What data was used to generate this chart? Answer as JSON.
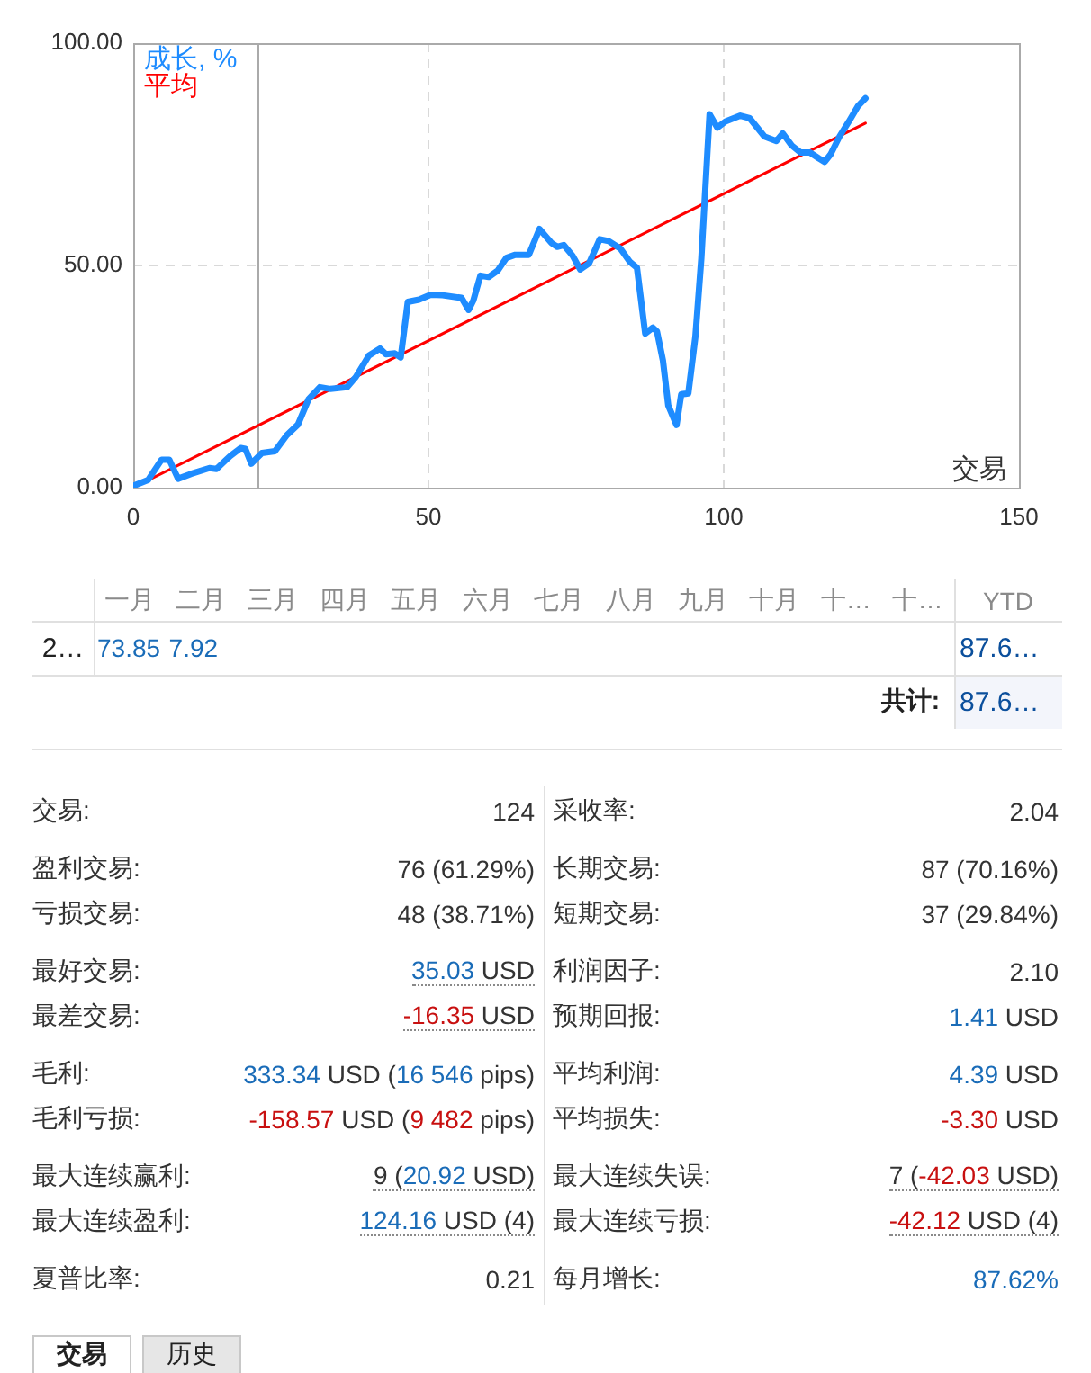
{
  "chart_data": [
    {
      "type": "line",
      "series": [
        {
          "name": "成长, %",
          "color": "#1e8cff",
          "x": [
            0,
            2.5,
            4.8,
            6.1,
            7.6,
            9.8,
            12.9,
            14.1,
            16.4,
            18.2,
            19,
            20,
            21.8,
            24,
            26,
            27.9,
            29.7,
            31.6,
            33.4,
            36.2,
            37.7,
            39.9,
            41.8,
            42.8,
            44.3,
            45.3,
            46.5,
            48.4,
            50.4,
            52.4,
            55.6,
            56.8,
            57.6,
            58.8,
            60.2,
            61.7,
            63.2,
            64.7,
            67,
            68.8,
            70.8,
            71.8,
            72.9,
            74.4,
            75.7,
            77.2,
            79,
            80.5,
            82.5,
            84.1,
            85.3,
            86.7,
            88,
            88.7,
            89.7,
            90.6,
            92,
            92.8,
            94,
            95.2,
            96.2,
            97.6,
            98.9,
            100.3,
            102.8,
            104.4,
            106.9,
            108.9,
            110,
            111.5,
            113,
            114.6,
            116.1,
            117.1,
            118.1,
            119.6,
            121.2,
            122.7,
            124
          ],
          "values": [
            0.4,
            1.7,
            6.3,
            6.3,
            2.0,
            3.1,
            4.4,
            4.2,
            7.1,
            8.9,
            8.7,
            5.4,
            7.8,
            8.2,
            11.8,
            14.2,
            19.9,
            22.6,
            22.2,
            22.6,
            24.9,
            29.7,
            31.3,
            30,
            30.2,
            29.3,
            41.8,
            42.3,
            43.4,
            43.3,
            42.7,
            40,
            42.1,
            47.7,
            47.4,
            48.8,
            51.7,
            52.4,
            52.4,
            58.2,
            55.1,
            54.2,
            54.6,
            52.2,
            49.1,
            50.5,
            55.9,
            55.5,
            53.8,
            50.8,
            49.5,
            34.7,
            36,
            35.1,
            28.6,
            18.5,
            14.1,
            21,
            21.2,
            34,
            51.5,
            84,
            81,
            82.4,
            83.7,
            83.1,
            79,
            78,
            79.7,
            77,
            75.4,
            75.4,
            74.1,
            73.3,
            75,
            79,
            82.4,
            85.8,
            87.6
          ]
        },
        {
          "name": "平均",
          "color": "#ff0000",
          "x": [
            0,
            124
          ],
          "values": [
            0,
            82
          ]
        }
      ],
      "xlim": [
        0,
        150
      ],
      "xticks": [
        0,
        50,
        100,
        150
      ],
      "ylim": [
        0,
        100
      ],
      "yticks": [
        {
          "value": 0,
          "label": "0.00"
        },
        {
          "value": 50,
          "label": "50.00"
        },
        {
          "value": 100,
          "label": "100.00"
        }
      ],
      "xlabel": "交易",
      "grid": true,
      "legend": "top left",
      "ref_lines": [
        {
          "axis": "x",
          "value": 21,
          "color": "#aaaaaa"
        }
      ]
    },
    {
      "type": "other",
      "annotations": [
        "一月",
        "二月",
        "三月",
        "四月",
        "五月",
        "六月",
        "七月",
        "八月",
        "九月",
        "十月",
        "十…",
        "十…",
        "YTD",
        "2…",
        "73.85",
        "7.92",
        "87.6…",
        "共计:",
        "87.6…"
      ]
    },
    {
      "type": "other",
      "annotations": [
        "交易:",
        "124",
        "采收率:",
        "2.04",
        "盈利交易:",
        "76 (61.29%)",
        "长期交易:",
        "87 (70.16%)",
        "亏损交易:",
        "48 (38.71%)",
        "短期交易:",
        "37 (29.84%)",
        "最好交易:",
        "35.03 USD",
        "利润因子:",
        "2.10",
        "最差交易:",
        "-16.35 USD",
        "预期回报:",
        "1.41 USD",
        "毛利:",
        "333.34 USD (16 546 pips)",
        "平均利润:",
        "4.39 USD",
        "毛利亏损:",
        "-158.57 USD (9 482 pips)",
        "平均损失:",
        "-3.30 USD",
        "最大连续赢利:",
        "9 (20.92 USD)",
        "最大连续失误:",
        "7 (-42.03 USD)",
        "最大连续盈利:",
        "124.16 USD (4)",
        "最大连续亏损:",
        "-42.12 USD (4)",
        "夏普比率:",
        "0.21",
        "每月增长:",
        "87.62%",
        "交易",
        "历史"
      ]
    }
  ]
}
